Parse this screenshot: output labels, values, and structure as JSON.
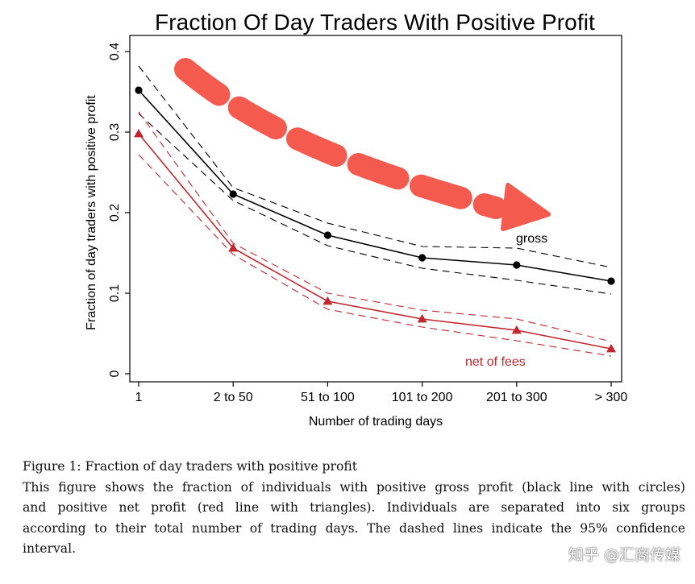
{
  "chart_data": {
    "type": "line",
    "title": "Fraction Of Day Traders With Positive Profit",
    "xlabel": "Number of trading days",
    "ylabel": "Fraction of day traders with positive profit",
    "categories": [
      "1",
      "2 to 50",
      "51 to 100",
      "101 to 200",
      "201 to 300",
      "> 300"
    ],
    "ylim": [
      0,
      0.4
    ],
    "yticks": [
      "0",
      "0.1",
      "0.2",
      "0.3",
      "0.4"
    ],
    "grid": false,
    "series": [
      {
        "name": "gross",
        "color": "#000000",
        "marker": "circle",
        "values": [
          0.352,
          0.223,
          0.172,
          0.144,
          0.135,
          0.115
        ],
        "ci_upper": [
          0.382,
          0.231,
          0.187,
          0.158,
          0.156,
          0.132
        ],
        "ci_lower": [
          0.323,
          0.215,
          0.159,
          0.131,
          0.116,
          0.099
        ]
      },
      {
        "name": "net of fees",
        "color": "#c2262e",
        "marker": "triangle",
        "values": [
          0.298,
          0.156,
          0.09,
          0.068,
          0.054,
          0.031
        ],
        "ci_upper": [
          0.325,
          0.162,
          0.1,
          0.079,
          0.068,
          0.04
        ],
        "ci_lower": [
          0.272,
          0.148,
          0.08,
          0.058,
          0.041,
          0.022
        ]
      }
    ],
    "annotation_arrow_color": "#f45b4e"
  },
  "caption": {
    "figure_line": "Figure 1: Fraction of day traders with positive profit",
    "body_lines": [
      "This figure shows the fraction of individuals with positive gross profit (black line with circles)",
      "and positive net profit (red line with triangles). Individuals are separated into six groups",
      "according to their total number of trading days. The dashed lines indicate the 95% confidence",
      "interval."
    ]
  },
  "watermark": "知乎 @汇商传媒"
}
